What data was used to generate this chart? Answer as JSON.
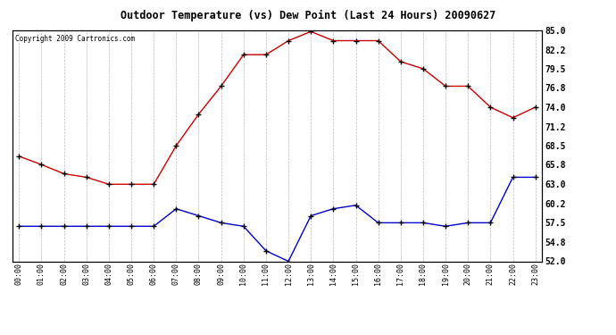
{
  "title": "Outdoor Temperature (vs) Dew Point (Last 24 Hours) 20090627",
  "copyright": "Copyright 2009 Cartronics.com",
  "x_labels": [
    "00:00",
    "01:00",
    "02:00",
    "03:00",
    "04:00",
    "05:00",
    "06:00",
    "07:00",
    "08:00",
    "09:00",
    "10:00",
    "11:00",
    "12:00",
    "13:00",
    "14:00",
    "15:00",
    "16:00",
    "17:00",
    "18:00",
    "19:00",
    "20:00",
    "21:00",
    "22:00",
    "23:00"
  ],
  "temp_red": [
    67.0,
    65.8,
    64.5,
    64.0,
    63.0,
    63.0,
    63.0,
    68.5,
    73.0,
    77.0,
    81.5,
    81.5,
    83.5,
    84.8,
    83.5,
    83.5,
    83.5,
    80.5,
    79.5,
    77.0,
    77.0,
    74.0,
    72.5,
    74.0
  ],
  "dew_blue": [
    57.0,
    57.0,
    57.0,
    57.0,
    57.0,
    57.0,
    57.0,
    59.5,
    58.5,
    57.5,
    57.0,
    53.5,
    52.0,
    58.5,
    59.5,
    60.0,
    57.5,
    57.5,
    57.5,
    57.0,
    57.5,
    57.5,
    64.0,
    64.0
  ],
  "ylim": [
    52.0,
    85.0
  ],
  "yticks": [
    52.0,
    54.8,
    57.5,
    60.2,
    63.0,
    65.8,
    68.5,
    71.2,
    74.0,
    76.8,
    79.5,
    82.2,
    85.0
  ],
  "background_color": "#ffffff",
  "grid_color": "#bbbbbb",
  "red_color": "#cc0000",
  "blue_color": "#0000cc",
  "title_color": "#000000"
}
